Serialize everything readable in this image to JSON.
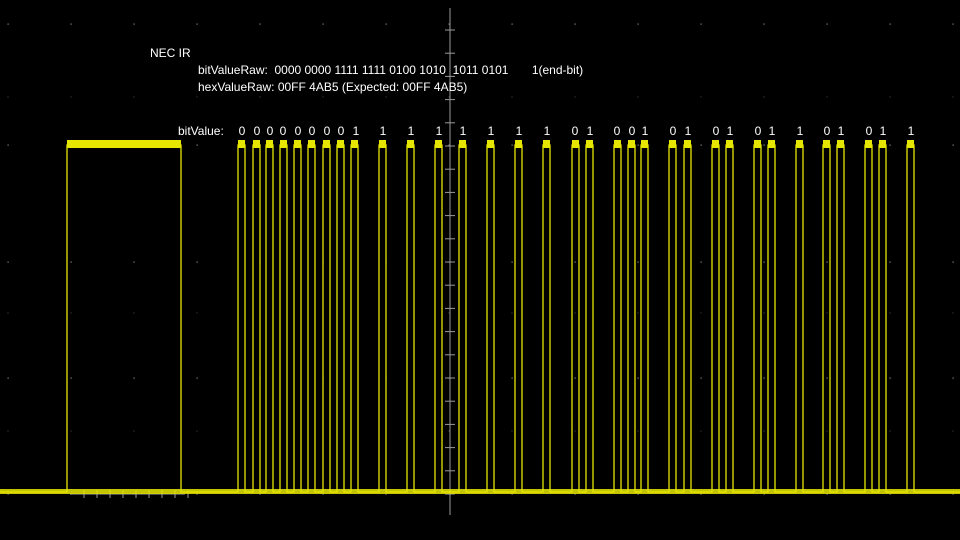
{
  "annotations": {
    "title": "NEC IR",
    "raw_line": "bitValueRaw:  0000 0000 1111 1111 0100 1010  1011 0101       1(end-bit)",
    "hex_line": "hexValueRaw: 00FF 4AB5 (Expected: 00FF 4AB5)",
    "bit_label": "bitValue:"
  },
  "colors": {
    "trace": "#e6e600",
    "grid": "#8a8a8a",
    "background": "#000000",
    "text": "#ffffff"
  },
  "chart_data": {
    "type": "line",
    "title": "NEC IR",
    "xlabel": "",
    "ylabel": "",
    "grid": true,
    "signal": {
      "levels": [
        "low",
        "high"
      ],
      "leader_pulse": "high",
      "bits": [
        "0",
        "0",
        "0",
        "0",
        "0",
        "0",
        "0",
        "0",
        "1",
        "1",
        "1",
        "1",
        "1",
        "1",
        "1",
        "1",
        "0",
        "1",
        "0",
        "0",
        "1",
        "0",
        "1",
        "0",
        "1",
        "0",
        "1",
        "1",
        "0",
        "1",
        "0",
        "1",
        "1"
      ],
      "end_bit": "1"
    }
  }
}
